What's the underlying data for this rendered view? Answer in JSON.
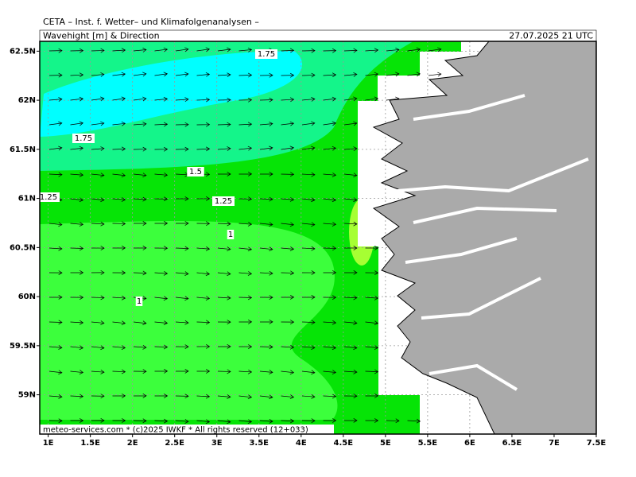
{
  "header": {
    "title": "CETA – Inst. f. Wetter– und Klimafolgenanalysen –",
    "subtitle": "Wavehight [m] & Direction",
    "timestamp": "27.07.2025 21 UTC"
  },
  "map": {
    "xlim": [
      0.9,
      7.5
    ],
    "ylim": [
      58.6,
      62.6
    ],
    "grid": true,
    "xticks": [
      {
        "value": 1,
        "label": "1E"
      },
      {
        "value": 1.5,
        "label": "1.5E"
      },
      {
        "value": 2,
        "label": "2E"
      },
      {
        "value": 2.5,
        "label": "2.5E"
      },
      {
        "value": 3,
        "label": "3E"
      },
      {
        "value": 3.5,
        "label": "3.5E"
      },
      {
        "value": 4,
        "label": "4E"
      },
      {
        "value": 4.5,
        "label": "4.5E"
      },
      {
        "value": 5,
        "label": "5E"
      },
      {
        "value": 5.5,
        "label": "5.5E"
      },
      {
        "value": 6,
        "label": "6E"
      },
      {
        "value": 6.5,
        "label": "6.5E"
      },
      {
        "value": 7,
        "label": "7E"
      },
      {
        "value": 7.5,
        "label": "7.5E"
      }
    ],
    "yticks": [
      {
        "value": 59,
        "label": "59N"
      },
      {
        "value": 59.5,
        "label": "59.5N"
      },
      {
        "value": 60,
        "label": "60N"
      },
      {
        "value": 60.5,
        "label": "60.5N"
      },
      {
        "value": 61,
        "label": "61N"
      },
      {
        "value": 61.5,
        "label": "61.5N"
      },
      {
        "value": 62,
        "label": "62N"
      },
      {
        "value": 62.5,
        "label": "62.5N"
      }
    ],
    "contour_labels": [
      "1.75",
      "1.75",
      "1.5",
      "1.25",
      "1.25",
      "1",
      "1"
    ]
  },
  "footer": "meteo-services.com * (c)2025 IWKF * All rights reserved (12+033)"
}
